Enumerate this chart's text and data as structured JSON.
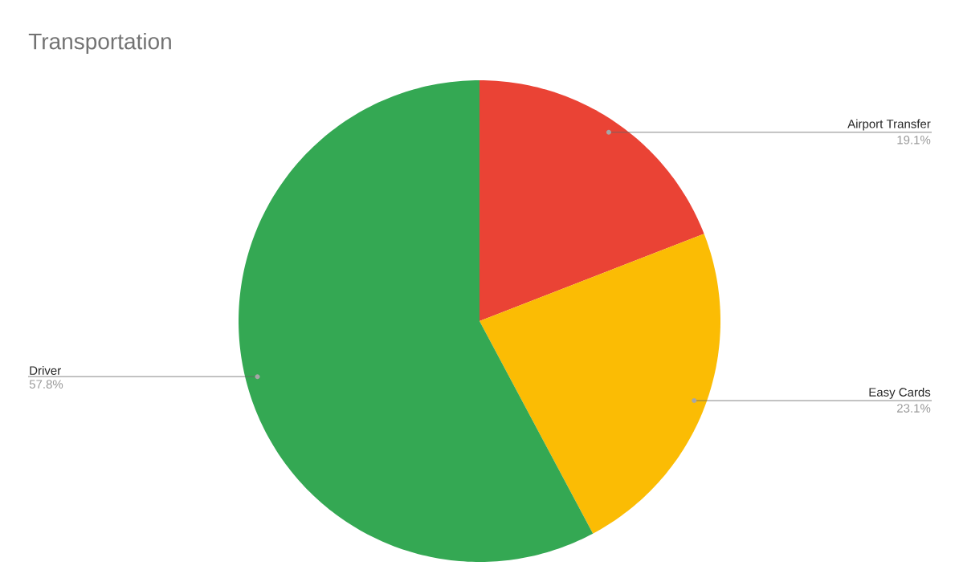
{
  "chart_data": {
    "type": "pie",
    "title": "Transportation",
    "categories": [
      "Airport Transfer",
      "Easy Cards",
      "Driver"
    ],
    "values": [
      19.1,
      23.1,
      57.8
    ],
    "colors": [
      "#ea4335",
      "#fbbc04",
      "#34a853"
    ],
    "value_labels": [
      "19.1%",
      "23.1%",
      "57.8%"
    ],
    "legend": false
  }
}
